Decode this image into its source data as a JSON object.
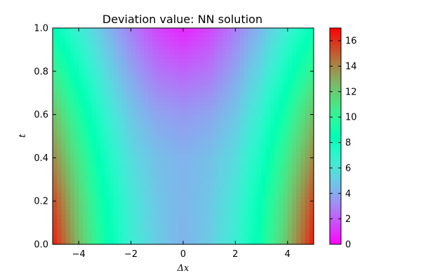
{
  "chart_data": {
    "type": "heatmap",
    "title": "Deviation value: NN solution",
    "xlabel": "Δx",
    "ylabel": "t",
    "xlim": [
      -5,
      5
    ],
    "ylim": [
      0,
      1
    ],
    "x_ticks": [
      -4,
      -2,
      0,
      2,
      4
    ],
    "x_tick_labels": [
      "−4",
      "−2",
      "0",
      "2",
      "4"
    ],
    "y_ticks": [
      0.0,
      0.2,
      0.4,
      0.6,
      0.8,
      1.0
    ],
    "y_tick_labels": [
      "0.0",
      "0.2",
      "0.4",
      "0.6",
      "0.8",
      "1.0"
    ],
    "colorbar": {
      "colormap": "rainbow",
      "vmin": 0,
      "vmax": 17,
      "ticks": [
        0,
        2,
        4,
        6,
        8,
        10,
        12,
        14,
        16
      ],
      "tick_labels": [
        "0",
        "2",
        "4",
        "6",
        "8",
        "10",
        "12",
        "14",
        "16"
      ]
    },
    "grid": false,
    "x_samples": [
      -5.0,
      -4.0,
      -3.0,
      -2.0,
      -1.0,
      0.0,
      1.0,
      2.0,
      3.0,
      4.0,
      5.0
    ],
    "t_samples": [
      0.0,
      0.2,
      0.4,
      0.6,
      0.8,
      1.0
    ],
    "values": [
      [
        16.5,
        12.5,
        9.0,
        6.5,
        5.0,
        4.2,
        5.0,
        6.5,
        9.0,
        12.5,
        16.5
      ],
      [
        15.5,
        11.8,
        8.6,
        6.2,
        4.8,
        4.3,
        4.8,
        6.2,
        8.6,
        11.8,
        15.5
      ],
      [
        14.0,
        10.8,
        7.8,
        5.6,
        4.6,
        4.2,
        4.6,
        5.6,
        7.8,
        10.8,
        14.0
      ],
      [
        12.5,
        9.5,
        6.8,
        4.8,
        3.8,
        3.5,
        3.8,
        4.8,
        6.8,
        9.5,
        12.5
      ],
      [
        10.5,
        8.0,
        5.6,
        3.8,
        2.6,
        2.2,
        2.6,
        3.8,
        5.6,
        8.0,
        10.5
      ],
      [
        8.5,
        6.5,
        4.5,
        2.8,
        1.5,
        0.8,
        1.5,
        2.8,
        4.5,
        6.5,
        8.5
      ]
    ]
  }
}
